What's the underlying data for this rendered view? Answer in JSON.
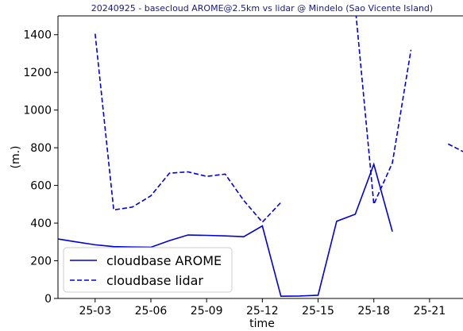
{
  "chart_data": {
    "type": "line",
    "title": "20240925 - basecloud AROME@2.5km vs lidar @ Mindelo (Sao Vicente Island)",
    "x_label": "time",
    "y_label": "(m.)",
    "x": [
      1,
      2,
      3,
      4,
      5,
      6,
      7,
      8,
      9,
      10,
      11,
      12,
      13,
      14,
      15,
      16,
      17,
      18,
      19,
      20,
      21,
      22,
      23
    ],
    "series": [
      {
        "name": "cloudbase AROME",
        "color": "#0000dd",
        "dash": "solid",
        "values": [
          316,
          300,
          285,
          275,
          273,
          272,
          307,
          337,
          335,
          332,
          328,
          385,
          12,
          13,
          17,
          410,
          447,
          712,
          355,
          null,
          null,
          null,
          null
        ]
      },
      {
        "name": "cloudbase lidar",
        "color": "#0000dd",
        "dash": "dashed",
        "values": [
          null,
          null,
          1405,
          470,
          485,
          545,
          665,
          672,
          648,
          660,
          520,
          405,
          510,
          null,
          null,
          null,
          1550,
          500,
          720,
          1320,
          null,
          820,
          770
        ]
      }
    ],
    "xlim": [
      1,
      22.8
    ],
    "ylim": [
      0,
      1500
    ],
    "xticks": [
      {
        "value": 3,
        "label": "25-03"
      },
      {
        "value": 6,
        "label": "25-06"
      },
      {
        "value": 9,
        "label": "25-09"
      },
      {
        "value": 12,
        "label": "25-12"
      },
      {
        "value": 15,
        "label": "25-15"
      },
      {
        "value": 18,
        "label": "25-18"
      },
      {
        "value": 21,
        "label": "25-21"
      }
    ],
    "yticks": [
      0,
      200,
      400,
      600,
      800,
      1000,
      1200,
      1400
    ],
    "grid": false,
    "legend": "lower left"
  }
}
